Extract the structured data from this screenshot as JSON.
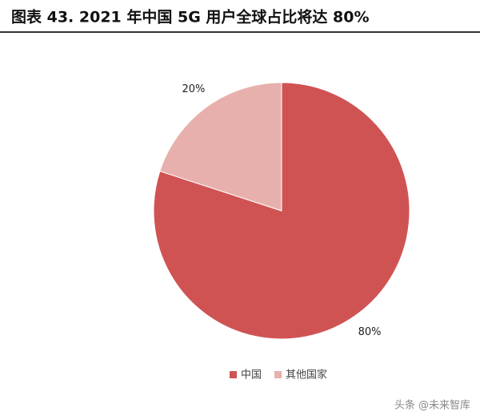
{
  "chart_data": {
    "type": "pie",
    "title": "图表 43. 2021 年中国 5G 用户全球占比将达 80%",
    "categories": [
      "中国",
      "其他国家"
    ],
    "values": [
      80,
      20
    ],
    "value_labels": [
      "80%",
      "20%"
    ],
    "colors": [
      "#d05353",
      "#e8b0ac"
    ],
    "legend": "bottom"
  },
  "watermark": "头条 @未来智库"
}
